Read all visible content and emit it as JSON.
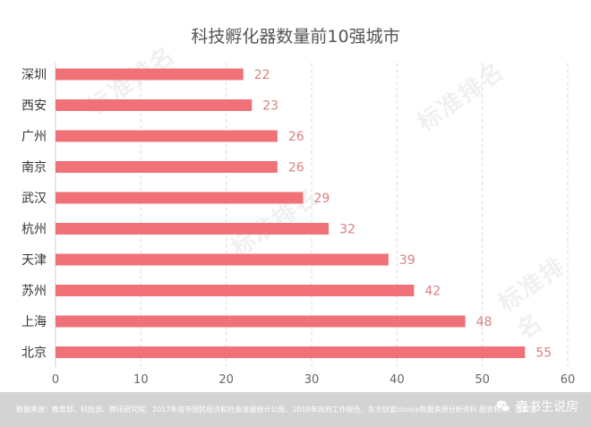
{
  "watermark": "标准排名",
  "chart_data": {
    "type": "bar",
    "orientation": "horizontal",
    "title": "科技孵化器数量前10强城市",
    "categories": [
      "深圳",
      "西安",
      "广州",
      "南京",
      "武汉",
      "杭州",
      "天津",
      "苏州",
      "上海",
      "北京"
    ],
    "values": [
      22,
      23,
      26,
      26,
      29,
      32,
      39,
      42,
      48,
      55
    ],
    "xlim": [
      0,
      60
    ],
    "xticks": [
      0,
      10,
      20,
      30,
      40,
      50,
      60
    ],
    "grid": true,
    "bar_color": "#f07178",
    "label_color": "#d98080"
  },
  "footer": {
    "source": "数据来源：教育部、科技部、腾讯研究院、2017年各市国民经济和社会发展统计公报、2018年政府工作报告、东方财富choice数据资源分析资料  图表制作：壹窝油",
    "brand": "壹书生说房",
    "icon": "wechat-icon"
  }
}
